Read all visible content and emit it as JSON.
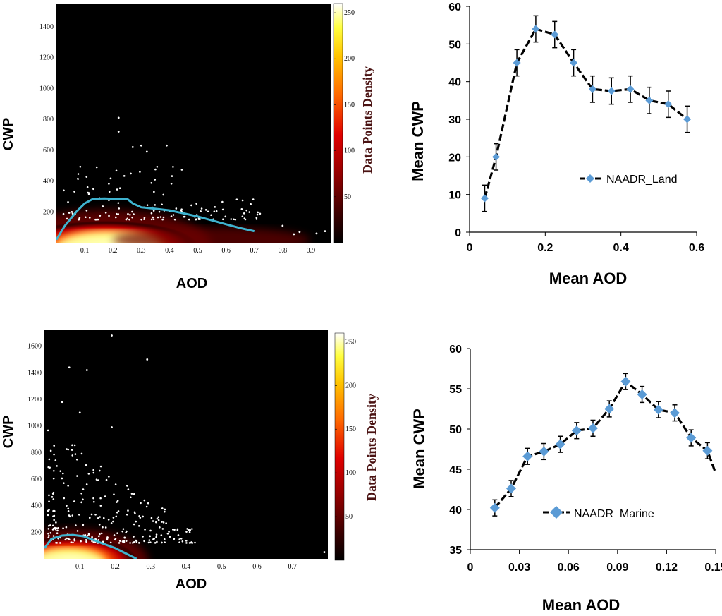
{
  "colors": {
    "series_fill": "#5b9bd5",
    "series_line": "#000000",
    "density_curve": "#3fb3cf",
    "background_dark": "#000000"
  },
  "chart_data": [
    {
      "id": "land-density",
      "type": "heatmap",
      "title": "",
      "xlabel": "AOD",
      "ylabel": "CWP",
      "xlim": [
        0.0,
        0.97
      ],
      "ylim": [
        0,
        1550
      ],
      "xticks": [
        "0.1",
        "0.2",
        "0.3",
        "0.4",
        "0.5",
        "0.6",
        "0.7",
        "0.8",
        "0.9"
      ],
      "yticks": [
        "200",
        "400",
        "600",
        "800",
        "1000",
        "1200",
        "1400"
      ],
      "colorbar_label": "Data Points Density",
      "colorbar_ticks": [
        "50",
        "100",
        "150",
        "200",
        "250"
      ],
      "colorbar_range": [
        0,
        260
      ],
      "fit_curve": {
        "x": [
          0.0,
          0.03,
          0.07,
          0.1,
          0.13,
          0.17,
          0.2,
          0.23,
          0.25,
          0.27,
          0.3,
          0.35,
          0.4,
          0.45,
          0.5,
          0.55,
          0.6,
          0.65,
          0.7
        ],
        "y": [
          20,
          110,
          200,
          255,
          285,
          287,
          285,
          285,
          285,
          255,
          230,
          220,
          210,
          190,
          170,
          145,
          120,
          95,
          75
        ]
      }
    },
    {
      "id": "land-mean",
      "type": "line",
      "xlabel": "Mean AOD",
      "ylabel": "Mean CWP",
      "xlim": [
        0,
        0.6
      ],
      "ylim": [
        0,
        60
      ],
      "xticks": [
        "0",
        "0.2",
        "0.4",
        "0.6"
      ],
      "yticks": [
        "0",
        "10",
        "20",
        "30",
        "40",
        "50",
        "60"
      ],
      "series": [
        {
          "name": "NAADR_Land",
          "x": [
            0.04,
            0.07,
            0.125,
            0.175,
            0.225,
            0.275,
            0.325,
            0.375,
            0.425,
            0.475,
            0.525,
            0.575
          ],
          "values": [
            9,
            20,
            45,
            54,
            52.5,
            45,
            38,
            37.5,
            38,
            35,
            34,
            30
          ],
          "error": [
            3.5,
            3.5,
            3.5,
            3.5,
            3.5,
            3.5,
            3.5,
            3.5,
            3.5,
            3.5,
            3.5,
            3.5
          ]
        }
      ]
    },
    {
      "id": "marine-density",
      "type": "heatmap",
      "xlabel": "AOD",
      "ylabel": "CWP",
      "xlim": [
        0.0,
        0.8
      ],
      "ylim": [
        0,
        1720
      ],
      "xticks": [
        "0.1",
        "0.2",
        "0.3",
        "0.4",
        "0.5",
        "0.6",
        "0.7"
      ],
      "yticks": [
        "200",
        "400",
        "600",
        "800",
        "1000",
        "1200",
        "1400",
        "1600"
      ],
      "colorbar_label": "Data Points Density",
      "colorbar_ticks": [
        "50",
        "100",
        "150",
        "200",
        "250"
      ],
      "colorbar_range": [
        0,
        260
      ],
      "fit_curve": {
        "x": [
          0.0,
          0.02,
          0.05,
          0.08,
          0.11,
          0.14,
          0.17,
          0.2,
          0.23,
          0.26
        ],
        "y": [
          80,
          150,
          175,
          180,
          170,
          140,
          110,
          80,
          40,
          0
        ]
      }
    },
    {
      "id": "marine-mean",
      "type": "line",
      "xlabel": "Mean AOD",
      "ylabel": "Mean CWP",
      "xlim": [
        0,
        0.15
      ],
      "ylim": [
        35,
        60
      ],
      "xticks": [
        "0",
        "0.03",
        "0.06",
        "0.09",
        "0.12",
        "0.15"
      ],
      "yticks": [
        "35",
        "40",
        "45",
        "50",
        "55",
        "60"
      ],
      "series": [
        {
          "name": "NAADR_Marine",
          "x": [
            0.015,
            0.025,
            0.035,
            0.045,
            0.055,
            0.065,
            0.075,
            0.085,
            0.095,
            0.105,
            0.115,
            0.125,
            0.135,
            0.145,
            0.15
          ],
          "values": [
            40.2,
            42.6,
            46.6,
            47.2,
            48.1,
            49.8,
            50.1,
            52.5,
            55.9,
            54.3,
            52.4,
            52.0,
            48.9,
            47.3,
            44.5
          ],
          "error": [
            1.0,
            1.0,
            1.0,
            1.0,
            1.0,
            1.0,
            1.0,
            1.0,
            1.0,
            1.0,
            1.0,
            1.0,
            1.0,
            1.0,
            0
          ]
        }
      ]
    }
  ]
}
